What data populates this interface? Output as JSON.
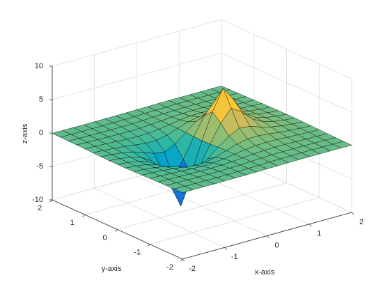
{
  "chart_data": {
    "type": "surface",
    "xlabel": "x-axis",
    "ylabel": "y-axis",
    "zlabel": "z-axis",
    "x": [
      -2,
      -1.75,
      -1.5,
      -1.25,
      -1,
      -0.75,
      -0.5,
      -0.25,
      0,
      0.25,
      0.5,
      0.75,
      1,
      1.25,
      1.5,
      1.75,
      2
    ],
    "y": [
      -2,
      -1.75,
      -1.5,
      -1.25,
      -1,
      -0.75,
      -0.5,
      -0.25,
      0,
      0.25,
      0.5,
      0.75,
      1,
      1.25,
      1.5,
      1.75,
      2
    ],
    "z": [
      [
        -0.06,
        -0.07,
        -0.07,
        -0.08,
        -0.07,
        -0.06,
        -0.05,
        -0.03,
        0,
        0.02,
        0.05,
        0.06,
        0.07,
        0.07,
        0.07,
        0.07,
        0.06
      ],
      [
        -0.08,
        -0.09,
        -0.1,
        -0.11,
        -0.11,
        -0.1,
        -0.08,
        -0.04,
        0,
        0.04,
        0.07,
        0.1,
        0.11,
        0.11,
        0.1,
        0.09,
        0.08
      ],
      [
        -0.1,
        -0.12,
        -0.14,
        -0.16,
        -0.17,
        -0.16,
        -0.13,
        -0.08,
        0,
        0.07,
        0.12,
        0.15,
        0.16,
        0.16,
        0.14,
        0.12,
        0.1
      ],
      [
        -0.13,
        -0.16,
        -0.2,
        -0.24,
        -0.27,
        -0.27,
        -0.23,
        -0.14,
        -0.01,
        0.12,
        0.22,
        0.26,
        0.26,
        0.23,
        0.19,
        0.16,
        0.13
      ],
      [
        -0.16,
        -0.21,
        -0.28,
        -0.36,
        -0.45,
        -0.49,
        -0.44,
        -0.27,
        -0.02,
        0.24,
        0.41,
        0.46,
        0.43,
        0.35,
        0.27,
        0.21,
        0.16
      ],
      [
        -0.2,
        -0.28,
        -0.39,
        -0.55,
        -0.76,
        -0.94,
        -0.92,
        -0.58,
        -0.03,
        0.51,
        0.84,
        0.88,
        0.72,
        0.53,
        0.38,
        0.27,
        0.2
      ],
      [
        -0.23,
        -0.34,
        -0.51,
        -0.81,
        -1.29,
        -1.91,
        -2.13,
        -1.36,
        -0.08,
        1.16,
        1.89,
        1.74,
        1.2,
        0.77,
        0.5,
        0.33,
        0.23
      ],
      [
        -0.26,
        -0.39,
        -0.62,
        -1.07,
        -2.01,
        -3.87,
        -5.32,
        -3.12,
        -0.16,
        2.54,
        4.33,
        3.34,
        1.85,
        1.01,
        0.6,
        0.38,
        0.25
      ],
      [
        -0.27,
        -0.41,
        -0.67,
        -1.2,
        -2.44,
        -5.56,
        -9.12,
        -4.71,
        -0.23,
        3.69,
        6.78,
        4.59,
        2.21,
        1.13,
        0.64,
        0.4,
        0.26
      ],
      [
        -0.26,
        -0.39,
        -0.62,
        -1.07,
        -2.01,
        -3.87,
        -5.32,
        -3.12,
        -0.16,
        2.54,
        4.33,
        3.34,
        1.85,
        1.01,
        0.6,
        0.38,
        0.25
      ],
      [
        -0.23,
        -0.34,
        -0.51,
        -0.81,
        -1.29,
        -1.91,
        -2.13,
        -1.36,
        -0.08,
        1.16,
        1.89,
        1.74,
        1.2,
        0.77,
        0.5,
        0.33,
        0.23
      ],
      [
        -0.2,
        -0.28,
        -0.39,
        -0.55,
        -0.76,
        -0.94,
        -0.92,
        -0.58,
        -0.03,
        0.51,
        0.84,
        0.88,
        0.72,
        0.53,
        0.38,
        0.27,
        0.2
      ],
      [
        -0.16,
        -0.21,
        -0.28,
        -0.36,
        -0.45,
        -0.49,
        -0.44,
        -0.27,
        -0.02,
        0.24,
        0.41,
        0.46,
        0.43,
        0.35,
        0.27,
        0.21,
        0.16
      ],
      [
        -0.13,
        -0.16,
        -0.2,
        -0.24,
        -0.27,
        -0.27,
        -0.23,
        -0.14,
        -0.01,
        0.12,
        0.22,
        0.26,
        0.26,
        0.23,
        0.19,
        0.16,
        0.13
      ],
      [
        -0.1,
        -0.12,
        -0.14,
        -0.16,
        -0.17,
        -0.16,
        -0.13,
        -0.08,
        0,
        0.07,
        0.12,
        0.15,
        0.16,
        0.16,
        0.14,
        0.12,
        0.1
      ],
      [
        -0.08,
        -0.09,
        -0.1,
        -0.11,
        -0.11,
        -0.1,
        -0.08,
        -0.04,
        0,
        0.04,
        0.07,
        0.1,
        0.11,
        0.11,
        0.1,
        0.09,
        0.08
      ],
      [
        -0.06,
        -0.07,
        -0.07,
        -0.08,
        -0.07,
        -0.06,
        -0.05,
        -0.03,
        0,
        0.02,
        0.05,
        0.06,
        0.07,
        0.07,
        0.07,
        0.07,
        0.06
      ]
    ],
    "xlim": [
      -2,
      2
    ],
    "ylim": [
      -2,
      2
    ],
    "zlim": [
      -10,
      10
    ],
    "xticks": [
      -2,
      -1,
      0,
      1,
      2
    ],
    "yticks": [
      -2,
      -1,
      0,
      1,
      2
    ],
    "zticks": [
      -10,
      -5,
      0,
      5,
      10
    ],
    "grid": true,
    "colormap": [
      "#352a87",
      "#0f5cdd",
      "#1481d6",
      "#06a4ca",
      "#2eb7a4",
      "#87bf77",
      "#d1bb59",
      "#fec832",
      "#f9fb0e"
    ],
    "edgecolor": "#000000"
  }
}
